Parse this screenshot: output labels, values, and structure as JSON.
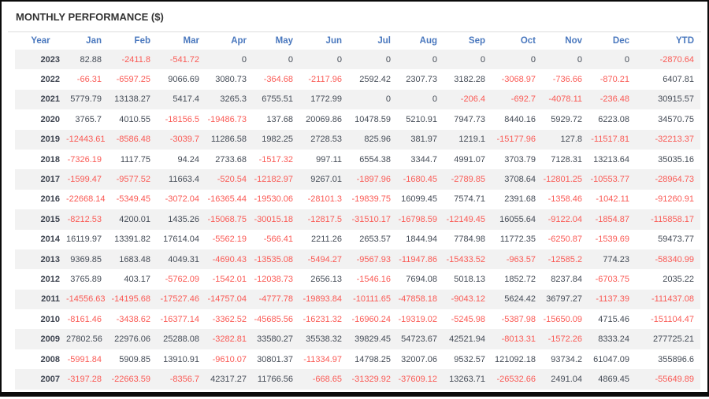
{
  "title": "MONTHLY PERFORMANCE ($)",
  "columns": [
    "Year",
    "Jan",
    "Feb",
    "Mar",
    "Apr",
    "May",
    "Jun",
    "Jul",
    "Aug",
    "Sep",
    "Oct",
    "Nov",
    "Dec",
    "YTD"
  ],
  "rows": [
    {
      "year": "2023",
      "values": [
        "82.88",
        "-2411.8",
        "-541.72",
        "0",
        "0",
        "0",
        "0",
        "0",
        "0",
        "0",
        "0",
        "0",
        "-2870.64"
      ]
    },
    {
      "year": "2022",
      "values": [
        "-66.31",
        "-6597.25",
        "9066.69",
        "3080.73",
        "-364.68",
        "-2117.96",
        "2592.42",
        "2307.73",
        "3182.28",
        "-3068.97",
        "-736.66",
        "-870.21",
        "6407.81"
      ]
    },
    {
      "year": "2021",
      "values": [
        "5779.79",
        "13138.27",
        "5417.4",
        "3265.3",
        "6755.51",
        "1772.99",
        "0",
        "0",
        "-206.4",
        "-692.7",
        "-4078.11",
        "-236.48",
        "30915.57"
      ]
    },
    {
      "year": "2020",
      "values": [
        "3765.7",
        "4010.55",
        "-18156.5",
        "-19486.73",
        "137.68",
        "20069.86",
        "10478.59",
        "5210.91",
        "7947.73",
        "8440.16",
        "5929.72",
        "6223.08",
        "34570.75"
      ]
    },
    {
      "year": "2019",
      "values": [
        "-12443.61",
        "-8586.48",
        "-3039.7",
        "11286.58",
        "1982.25",
        "2728.53",
        "825.96",
        "381.97",
        "1219.1",
        "-15177.96",
        "127.8",
        "-11517.81",
        "-32213.37"
      ]
    },
    {
      "year": "2018",
      "values": [
        "-7326.19",
        "1117.75",
        "94.24",
        "2733.68",
        "-1517.32",
        "997.11",
        "6554.38",
        "3344.7",
        "4991.07",
        "3703.79",
        "7128.31",
        "13213.64",
        "35035.16"
      ]
    },
    {
      "year": "2017",
      "values": [
        "-1599.47",
        "-9577.52",
        "11663.4",
        "-520.54",
        "-12182.97",
        "9267.01",
        "-1897.96",
        "-1680.45",
        "-2789.85",
        "3708.64",
        "-12801.25",
        "-10553.77",
        "-28964.73"
      ]
    },
    {
      "year": "2016",
      "values": [
        "-22668.14",
        "-5349.45",
        "-3072.04",
        "-16365.44",
        "-19530.06",
        "-28101.3",
        "-19839.75",
        "16099.45",
        "7574.71",
        "2391.68",
        "-1358.46",
        "-1042.11",
        "-91260.91"
      ]
    },
    {
      "year": "2015",
      "values": [
        "-8212.53",
        "4200.01",
        "1435.26",
        "-15068.75",
        "-30015.18",
        "-12817.5",
        "-31510.17",
        "-16798.59",
        "-12149.45",
        "16055.64",
        "-9122.04",
        "-1854.87",
        "-115858.17"
      ]
    },
    {
      "year": "2014",
      "values": [
        "16119.97",
        "13391.82",
        "17614.04",
        "-5562.19",
        "-566.41",
        "2211.26",
        "2653.57",
        "1844.94",
        "7784.98",
        "11772.35",
        "-6250.87",
        "-1539.69",
        "59473.77"
      ]
    },
    {
      "year": "2013",
      "values": [
        "9369.85",
        "1683.48",
        "4049.31",
        "-4690.43",
        "-13535.08",
        "-5494.27",
        "-9567.93",
        "-11947.86",
        "-15433.52",
        "-963.57",
        "-12585.2",
        "774.23",
        "-58340.99"
      ]
    },
    {
      "year": "2012",
      "values": [
        "3765.89",
        "403.17",
        "-5762.09",
        "-1542.01",
        "-12038.73",
        "2656.13",
        "-1546.16",
        "7694.08",
        "5018.13",
        "1852.72",
        "8237.84",
        "-6703.75",
        "2035.22"
      ]
    },
    {
      "year": "2011",
      "values": [
        "-14556.63",
        "-14195.68",
        "-17527.46",
        "-14757.04",
        "-4777.78",
        "-19893.84",
        "-10111.65",
        "-47858.18",
        "-9043.12",
        "5624.42",
        "36797.27",
        "-1137.39",
        "-111437.08"
      ]
    },
    {
      "year": "2010",
      "values": [
        "-8161.46",
        "-3438.62",
        "-16377.14",
        "-3362.52",
        "-45685.56",
        "-16231.32",
        "-16960.24",
        "-19319.02",
        "-5245.98",
        "-5387.98",
        "-15650.09",
        "4715.46",
        "-151104.47"
      ]
    },
    {
      "year": "2009",
      "values": [
        "27802.56",
        "22976.06",
        "25288.08",
        "-3282.81",
        "33580.27",
        "35538.32",
        "39829.45",
        "54723.67",
        "42521.94",
        "-8013.31",
        "-1572.26",
        "8333.24",
        "277725.21"
      ]
    },
    {
      "year": "2008",
      "values": [
        "-5991.84",
        "5909.85",
        "13910.91",
        "-9610.07",
        "30801.37",
        "-11334.97",
        "14798.25",
        "32007.06",
        "9532.57",
        "121092.18",
        "93734.2",
        "61047.09",
        "355896.6"
      ]
    },
    {
      "year": "2007",
      "values": [
        "-3197.28",
        "-22663.59",
        "-8356.7",
        "42317.27",
        "11766.56",
        "-668.65",
        "-31329.92",
        "-37609.12",
        "13263.71",
        "-26532.66",
        "2491.04",
        "4869.45",
        "-55649.89"
      ]
    }
  ],
  "colors": {
    "header_text": "#4a78be",
    "negative_value": "#fa5a55",
    "positive_value": "#454c57",
    "year_text": "#3c424e",
    "row_stripe": "#f2f2f2",
    "rule_line": "#dcdcdc",
    "title_text": "#333333",
    "frame_border": "#0b0b0b"
  }
}
